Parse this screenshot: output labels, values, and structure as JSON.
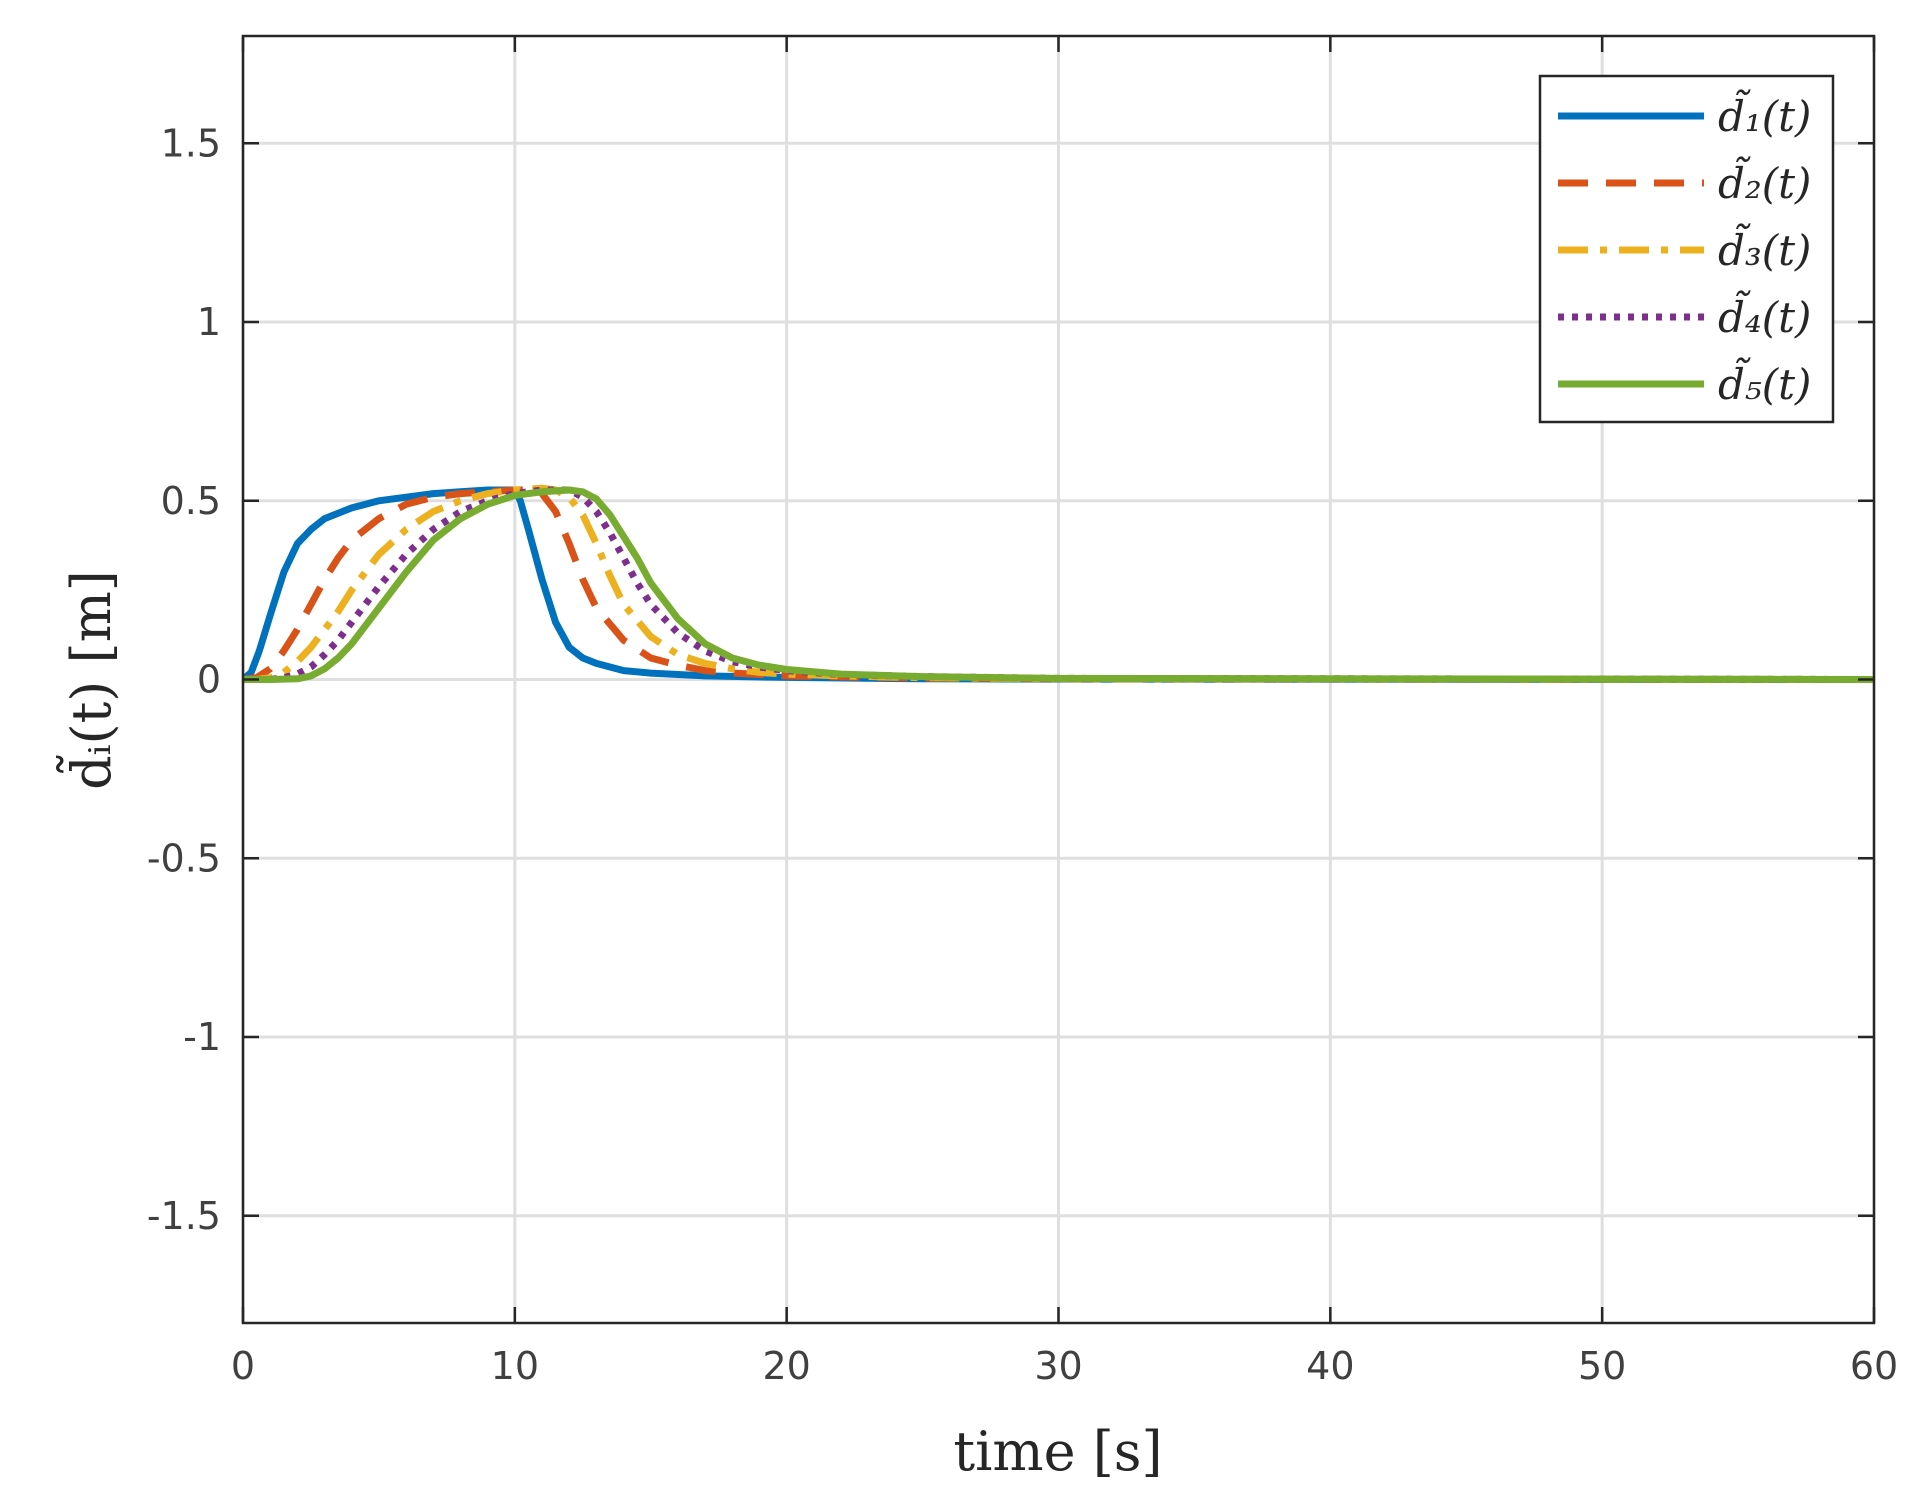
{
  "chart_data": {
    "type": "line",
    "title": "",
    "xlabel": "time [s]",
    "ylabel": "d̃ᵢ(t) [m]",
    "xlim": [
      0,
      60
    ],
    "ylim": [
      -1.8,
      1.8
    ],
    "grid": true,
    "legend_position": "top-right",
    "x_ticks": [
      0,
      10,
      20,
      30,
      40,
      50,
      60
    ],
    "x_tick_labels": [
      "0",
      "10",
      "20",
      "30",
      "40",
      "50",
      "60"
    ],
    "y_ticks": [
      -1.5,
      -1,
      -0.5,
      0,
      0.5,
      1,
      1.5
    ],
    "y_tick_labels": [
      "-1.5",
      "-1",
      "-0.5",
      "0",
      "0.5",
      "1",
      "1.5"
    ],
    "series": [
      {
        "name": "d̃₁(t)",
        "color": "#0072bd",
        "dash": "solid",
        "x": [
          0,
          0.3,
          0.6,
          1,
          1.5,
          2,
          2.5,
          3,
          4,
          5,
          6,
          7,
          8,
          9,
          10,
          10.2,
          10.5,
          11,
          11.5,
          12,
          12.5,
          13,
          14,
          15,
          17,
          20,
          25,
          30,
          60
        ],
        "y": [
          0,
          0.02,
          0.08,
          0.18,
          0.3,
          0.38,
          0.42,
          0.45,
          0.48,
          0.5,
          0.51,
          0.52,
          0.525,
          0.53,
          0.53,
          0.5,
          0.42,
          0.28,
          0.16,
          0.09,
          0.06,
          0.045,
          0.025,
          0.018,
          0.01,
          0.006,
          0.002,
          0.001,
          0
        ]
      },
      {
        "name": "d̃₂(t)",
        "color": "#d95319",
        "dash": "dashed",
        "x": [
          0,
          0.5,
          1,
          1.5,
          2,
          2.5,
          3,
          3.5,
          4,
          5,
          6,
          7,
          8,
          9,
          10,
          10.5,
          11,
          11.5,
          12,
          12.5,
          13,
          14,
          15,
          16,
          17,
          18,
          20,
          25,
          30,
          60
        ],
        "y": [
          0,
          0.005,
          0.03,
          0.08,
          0.14,
          0.21,
          0.28,
          0.34,
          0.39,
          0.45,
          0.49,
          0.51,
          0.52,
          0.525,
          0.53,
          0.53,
          0.52,
          0.47,
          0.38,
          0.28,
          0.2,
          0.11,
          0.06,
          0.04,
          0.025,
          0.018,
          0.01,
          0.004,
          0.002,
          0
        ]
      },
      {
        "name": "d̃₃(t)",
        "color": "#edb120",
        "dash": "dashdot",
        "x": [
          0,
          0.5,
          1,
          1.5,
          2,
          2.5,
          3,
          3.5,
          4,
          5,
          6,
          7,
          8,
          9,
          10,
          11,
          11.5,
          12,
          12.5,
          13,
          13.5,
          14,
          15,
          16,
          17,
          18,
          19,
          20,
          22,
          25,
          30,
          60
        ],
        "y": [
          0,
          0,
          0.005,
          0.02,
          0.05,
          0.09,
          0.14,
          0.19,
          0.25,
          0.35,
          0.42,
          0.47,
          0.5,
          0.52,
          0.53,
          0.535,
          0.53,
          0.51,
          0.46,
          0.38,
          0.29,
          0.21,
          0.12,
          0.07,
          0.045,
          0.03,
          0.02,
          0.015,
          0.01,
          0.005,
          0.002,
          0
        ]
      },
      {
        "name": "d̃₄(t)",
        "color": "#7e2f8e",
        "dash": "dotted",
        "x": [
          0,
          1,
          1.5,
          2,
          2.5,
          3,
          3.5,
          4,
          4.5,
          5,
          6,
          7,
          8,
          9,
          10,
          11,
          12,
          12.5,
          13,
          13.5,
          14,
          14.5,
          15,
          16,
          17,
          18,
          19,
          20,
          22,
          25,
          30,
          60
        ],
        "y": [
          0,
          0,
          0.005,
          0.015,
          0.035,
          0.07,
          0.11,
          0.16,
          0.21,
          0.26,
          0.35,
          0.42,
          0.47,
          0.5,
          0.52,
          0.53,
          0.53,
          0.51,
          0.47,
          0.41,
          0.34,
          0.27,
          0.21,
          0.13,
          0.08,
          0.05,
          0.035,
          0.025,
          0.014,
          0.008,
          0.003,
          0
        ]
      },
      {
        "name": "d̃₅(t)",
        "color": "#77ac30",
        "dash": "solid",
        "x": [
          0,
          1,
          2,
          2.5,
          3,
          3.5,
          4,
          4.5,
          5,
          6,
          7,
          8,
          9,
          10,
          11,
          12,
          12.5,
          13,
          13.5,
          14,
          14.5,
          15,
          16,
          17,
          18,
          19,
          20,
          22,
          25,
          30,
          60
        ],
        "y": [
          0,
          0,
          0.002,
          0.01,
          0.03,
          0.06,
          0.1,
          0.15,
          0.2,
          0.3,
          0.39,
          0.45,
          0.49,
          0.515,
          0.525,
          0.53,
          0.525,
          0.505,
          0.46,
          0.4,
          0.34,
          0.27,
          0.17,
          0.1,
          0.06,
          0.04,
          0.028,
          0.015,
          0.008,
          0.003,
          0
        ]
      }
    ]
  }
}
